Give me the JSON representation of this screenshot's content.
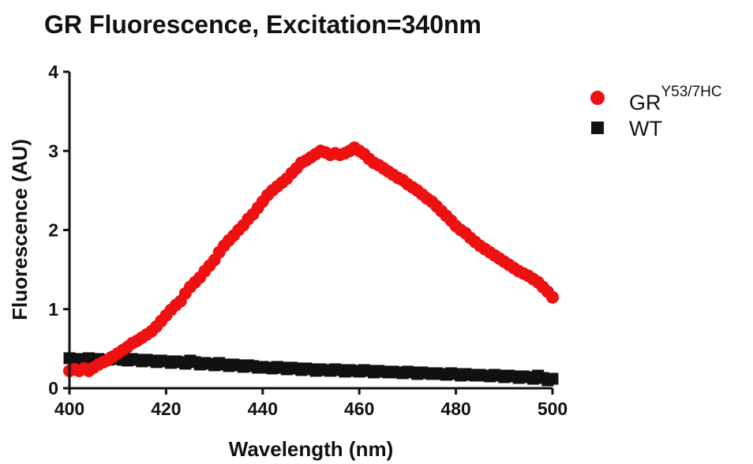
{
  "chart_data": {
    "type": "scatter",
    "title": "GR Fluorescence, Excitation=340nm",
    "xlabel": "Wavelength (nm)",
    "ylabel": "Fluorescence (AU)",
    "xlim": [
      400,
      500
    ],
    "ylim": [
      0,
      4
    ],
    "xticks": [
      "400",
      "420",
      "440",
      "460",
      "480",
      "500"
    ],
    "yticks": [
      "0",
      "1",
      "2",
      "3",
      "4"
    ],
    "grid": false,
    "legend_position": "top-right",
    "series": [
      {
        "name": "GR",
        "name_superscript": "Y53/7HC",
        "marker": "circle",
        "color": "#ee1111",
        "x": [
          400,
          401,
          402,
          403,
          404,
          405,
          406,
          407,
          408,
          409,
          410,
          411,
          412,
          413,
          414,
          415,
          416,
          417,
          418,
          419,
          420,
          421,
          422,
          423,
          424,
          425,
          426,
          427,
          428,
          429,
          430,
          431,
          432,
          433,
          434,
          435,
          436,
          437,
          438,
          439,
          440,
          441,
          442,
          443,
          444,
          445,
          446,
          447,
          448,
          449,
          450,
          451,
          452,
          453,
          454,
          455,
          456,
          457,
          458,
          459,
          460,
          461,
          462,
          463,
          464,
          465,
          466,
          467,
          468,
          469,
          470,
          471,
          472,
          473,
          474,
          475,
          476,
          477,
          478,
          479,
          480,
          481,
          482,
          483,
          484,
          485,
          486,
          487,
          488,
          489,
          490,
          491,
          492,
          493,
          494,
          495,
          496,
          497,
          498,
          499,
          500
        ],
        "y": [
          0.22,
          0.24,
          0.22,
          0.25,
          0.22,
          0.26,
          0.3,
          0.33,
          0.36,
          0.4,
          0.44,
          0.48,
          0.52,
          0.57,
          0.6,
          0.64,
          0.68,
          0.72,
          0.78,
          0.85,
          0.92,
          0.99,
          1.05,
          1.1,
          1.2,
          1.28,
          1.34,
          1.4,
          1.48,
          1.55,
          1.62,
          1.72,
          1.8,
          1.87,
          1.93,
          2.0,
          2.06,
          2.14,
          2.2,
          2.28,
          2.36,
          2.44,
          2.5,
          2.55,
          2.6,
          2.65,
          2.72,
          2.78,
          2.85,
          2.88,
          2.92,
          2.96,
          3.0,
          2.98,
          2.95,
          2.97,
          2.95,
          2.97,
          3.0,
          3.04,
          3.0,
          2.96,
          2.9,
          2.85,
          2.82,
          2.78,
          2.74,
          2.7,
          2.66,
          2.63,
          2.58,
          2.54,
          2.5,
          2.45,
          2.4,
          2.36,
          2.3,
          2.24,
          2.18,
          2.12,
          2.05,
          2.0,
          1.96,
          1.9,
          1.85,
          1.8,
          1.76,
          1.72,
          1.68,
          1.64,
          1.6,
          1.56,
          1.52,
          1.48,
          1.45,
          1.42,
          1.38,
          1.34,
          1.28,
          1.22,
          1.15
        ]
      },
      {
        "name": "WT",
        "marker": "square",
        "color": "#111111",
        "x": [
          400,
          401,
          402,
          403,
          404,
          405,
          406,
          407,
          408,
          409,
          410,
          411,
          412,
          413,
          414,
          415,
          416,
          417,
          418,
          419,
          420,
          421,
          422,
          423,
          424,
          425,
          426,
          427,
          428,
          429,
          430,
          431,
          432,
          433,
          434,
          435,
          436,
          437,
          438,
          439,
          440,
          441,
          442,
          443,
          444,
          445,
          446,
          447,
          448,
          449,
          450,
          451,
          452,
          453,
          454,
          455,
          456,
          457,
          458,
          459,
          460,
          461,
          462,
          463,
          464,
          465,
          466,
          467,
          468,
          469,
          470,
          471,
          472,
          473,
          474,
          475,
          476,
          477,
          478,
          479,
          480,
          481,
          482,
          483,
          484,
          485,
          486,
          487,
          488,
          489,
          490,
          491,
          492,
          493,
          494,
          495,
          496,
          497,
          498,
          499,
          500
        ],
        "y": [
          0.38,
          0.36,
          0.37,
          0.35,
          0.38,
          0.36,
          0.37,
          0.35,
          0.36,
          0.38,
          0.37,
          0.36,
          0.35,
          0.37,
          0.36,
          0.34,
          0.36,
          0.35,
          0.33,
          0.35,
          0.34,
          0.32,
          0.34,
          0.33,
          0.31,
          0.35,
          0.33,
          0.3,
          0.32,
          0.31,
          0.29,
          0.32,
          0.3,
          0.28,
          0.3,
          0.29,
          0.27,
          0.29,
          0.28,
          0.26,
          0.27,
          0.26,
          0.25,
          0.27,
          0.26,
          0.24,
          0.26,
          0.25,
          0.23,
          0.25,
          0.24,
          0.22,
          0.24,
          0.23,
          0.22,
          0.24,
          0.23,
          0.21,
          0.23,
          0.22,
          0.21,
          0.23,
          0.22,
          0.2,
          0.22,
          0.21,
          0.2,
          0.21,
          0.2,
          0.19,
          0.21,
          0.2,
          0.18,
          0.2,
          0.19,
          0.18,
          0.19,
          0.18,
          0.17,
          0.19,
          0.18,
          0.16,
          0.18,
          0.17,
          0.16,
          0.17,
          0.16,
          0.15,
          0.17,
          0.16,
          0.14,
          0.16,
          0.15,
          0.13,
          0.15,
          0.14,
          0.12,
          0.16,
          0.13,
          0.1,
          0.12
        ]
      }
    ]
  }
}
